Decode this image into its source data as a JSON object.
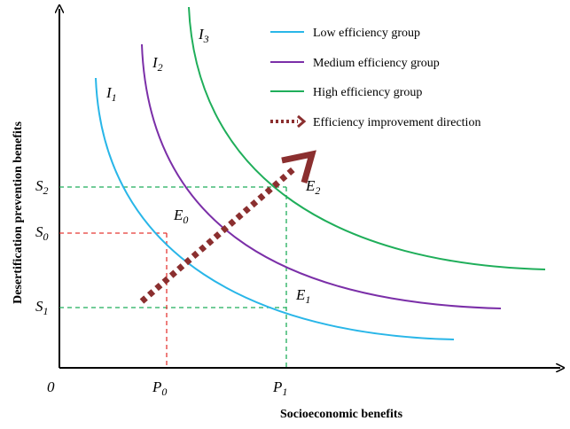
{
  "axes": {
    "x_label": "Socioeconomic benefits",
    "y_label": "Desertification prevention benefits",
    "origin": "0"
  },
  "curves": [
    {
      "label": "I",
      "sub": "1"
    },
    {
      "label": "I",
      "sub": "2"
    },
    {
      "label": "I",
      "sub": "3"
    }
  ],
  "points": [
    {
      "label": "E",
      "sub": "0"
    },
    {
      "label": "E",
      "sub": "1"
    },
    {
      "label": "E",
      "sub": "2"
    }
  ],
  "x_ticks": [
    {
      "label": "P",
      "sub": "0"
    },
    {
      "label": "P",
      "sub": "1"
    }
  ],
  "y_ticks": [
    {
      "label": "S",
      "sub": "2"
    },
    {
      "label": "S",
      "sub": "0"
    },
    {
      "label": "S",
      "sub": "1"
    }
  ],
  "legend": [
    "Low efficiency group",
    "Medium efficiency group",
    "High efficiency group",
    "Efficiency improvement direction"
  ]
}
